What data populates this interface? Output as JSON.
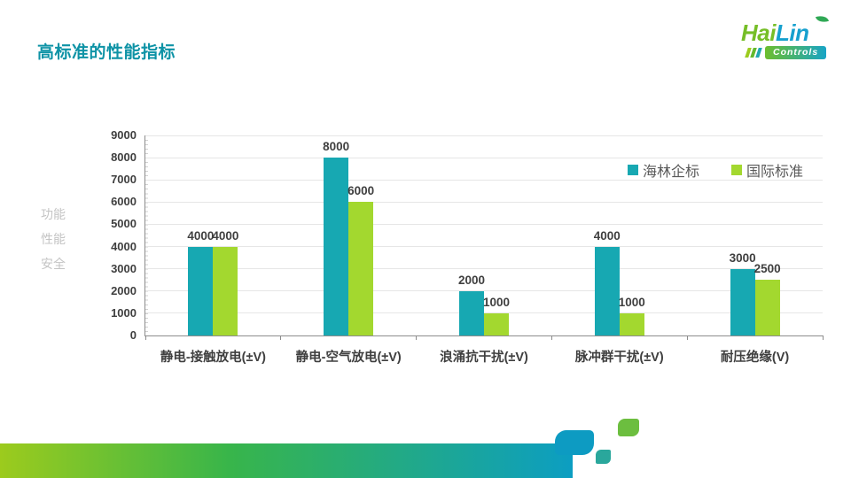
{
  "slide": {
    "title": "高标准的性能指标"
  },
  "logo": {
    "word_part1": "Hai",
    "word_part2": "Lin",
    "subtitle": "Controls"
  },
  "axis_title_lines": [
    "功能",
    "性能",
    "安全"
  ],
  "chart_data": {
    "type": "bar",
    "title": "",
    "categories": [
      "静电-接触放电(±V)",
      "静电-空气放电(±V)",
      "浪涌抗干扰(±V)",
      "脉冲群干扰(±V)",
      "耐压绝缘(V)"
    ],
    "series": [
      {
        "name": "海林企标",
        "color": "#17A8B2",
        "values": [
          4000,
          8000,
          2000,
          4000,
          3000
        ]
      },
      {
        "name": "国际标准",
        "color": "#A3D82F",
        "values": [
          4000,
          6000,
          1000,
          1000,
          2500
        ]
      }
    ],
    "xlabel": "",
    "ylabel": "功能 性能 安全",
    "ylim": [
      0,
      9000
    ],
    "ytick_step": 1000,
    "grid": true,
    "legend_position": "top-right"
  },
  "colors": {
    "title_teal": "#0E93A6",
    "bar_teal": "#17A8B2",
    "bar_green": "#A3D82F",
    "axis_text": "#3F3F3F",
    "legend_text": "#595959",
    "axis_title_gray": "#C4C4C4",
    "gridline": "#E6E6E6",
    "band_gradient_left": "#9CCB1D",
    "band_gradient_right": "#0C9EC2",
    "logo_green": "#76BE27",
    "logo_blue": "#16A0CE"
  }
}
